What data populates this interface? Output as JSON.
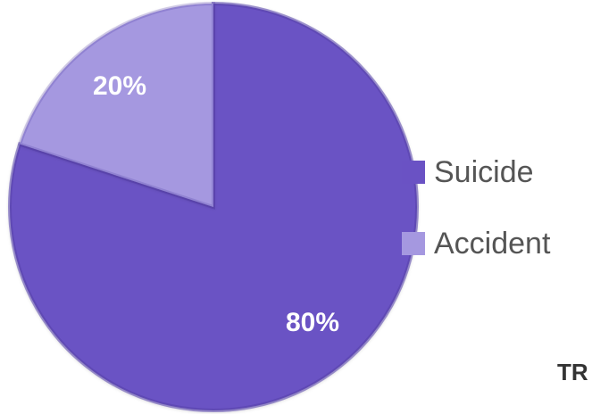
{
  "chart_data": {
    "type": "pie",
    "slices": [
      {
        "label": "Suicide",
        "value": 80,
        "display": "80%",
        "color": "#6a52c4"
      },
      {
        "label": "Accident",
        "value": 20,
        "display": "20%",
        "color": "#a598e0"
      }
    ],
    "legend": {
      "placement": "right",
      "entries": [
        "Suicide",
        "Accident"
      ]
    }
  },
  "footer_fragment": "TR"
}
